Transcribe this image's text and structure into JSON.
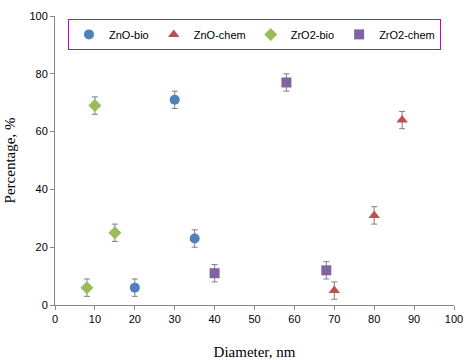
{
  "chart_data": {
    "type": "scatter",
    "x_label": "Diameter, nm",
    "y_label": "Percentage, %",
    "xlim": [
      0,
      100
    ],
    "xticks": [
      0,
      10,
      20,
      30,
      40,
      50,
      60,
      70,
      80,
      90,
      100
    ],
    "ylim": [
      0,
      100
    ],
    "yticks": [
      0,
      20,
      40,
      60,
      80,
      100
    ],
    "grid": false,
    "legend": "top",
    "series": [
      {
        "name": "ZnO-bio",
        "color": "#4f81bd",
        "marker": "circle",
        "x": [
          20,
          30,
          35
        ],
        "values": [
          6,
          71,
          23
        ],
        "error": [
          3,
          3,
          3
        ]
      },
      {
        "name": "ZnO-chem",
        "color": "#c0504d",
        "marker": "triangle-up",
        "x": [
          70,
          80,
          87
        ],
        "values": [
          5,
          31,
          64
        ],
        "error": [
          3,
          3,
          3
        ]
      },
      {
        "name": "ZrO2-bio",
        "color": "#9bbb59",
        "marker": "diamond",
        "x": [
          8,
          10,
          15
        ],
        "values": [
          6,
          69,
          25
        ],
        "error": [
          3,
          3,
          3
        ]
      },
      {
        "name": "ZrO2-chem",
        "color": "#8064a2",
        "marker": "square",
        "x": [
          40,
          58,
          68
        ],
        "values": [
          11,
          77,
          12
        ],
        "error": [
          3,
          3,
          3
        ]
      }
    ]
  }
}
